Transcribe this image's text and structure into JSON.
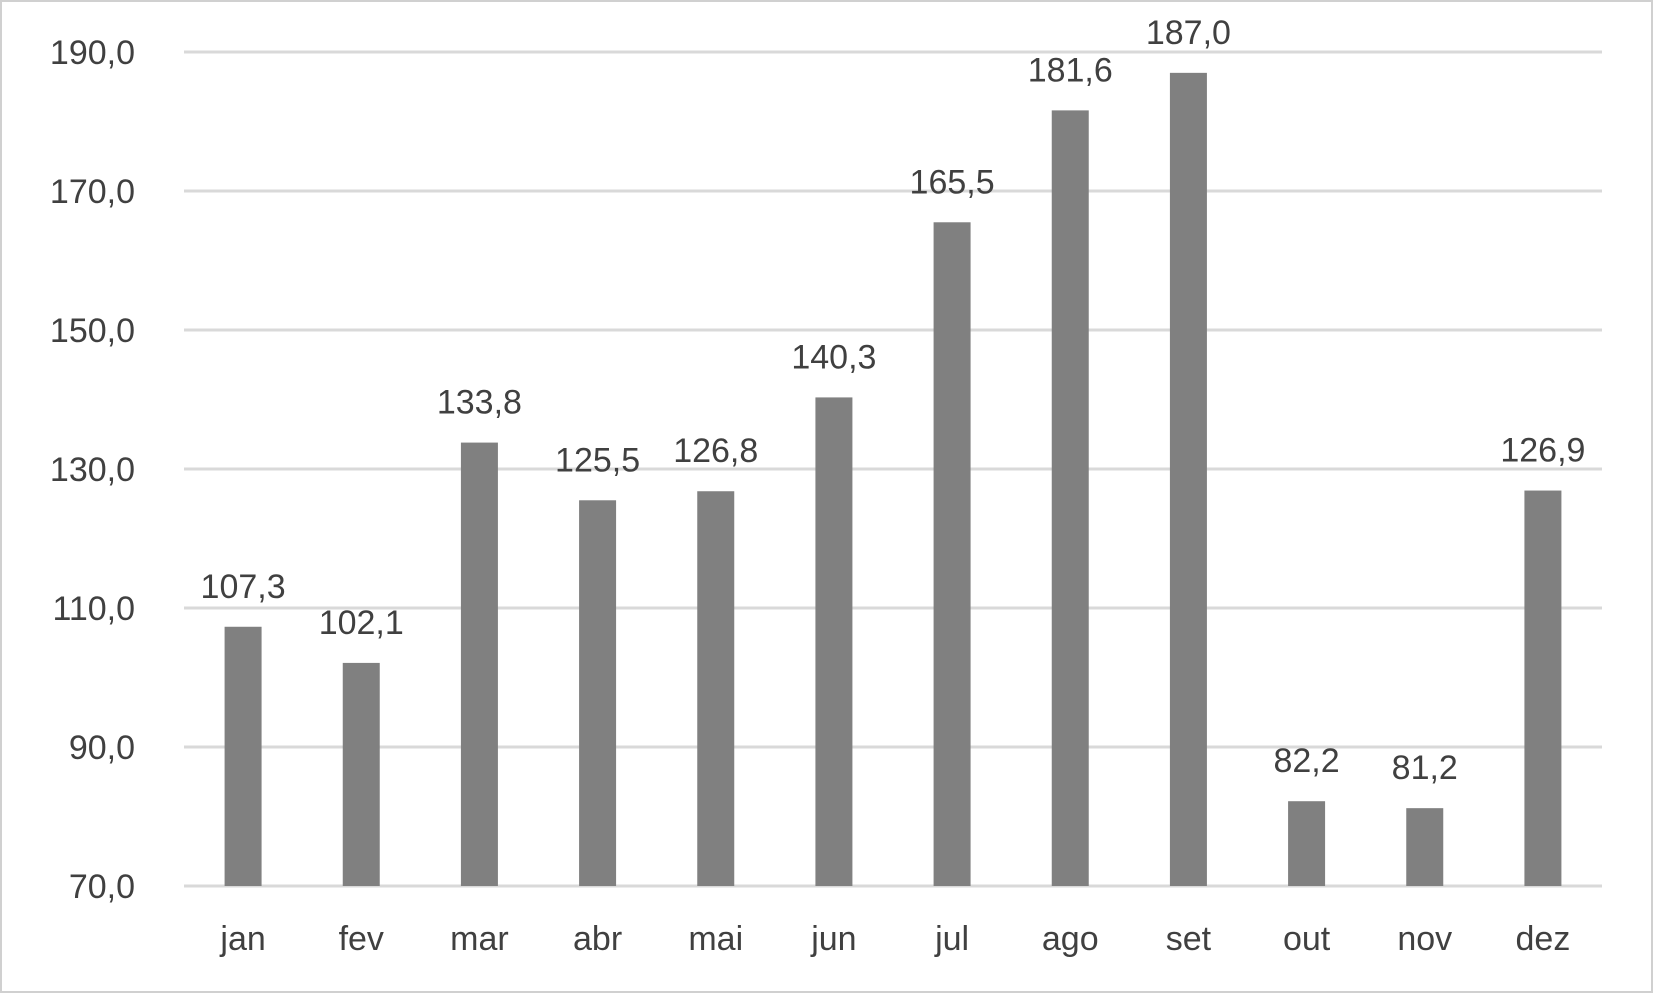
{
  "chart_data": {
    "type": "bar",
    "title": "",
    "xlabel": "",
    "ylabel": "",
    "categories": [
      "jan",
      "fev",
      "mar",
      "abr",
      "mai",
      "jun",
      "jul",
      "ago",
      "set",
      "out",
      "nov",
      "dez"
    ],
    "values": [
      107.3,
      102.1,
      133.8,
      125.5,
      126.8,
      140.3,
      165.5,
      181.6,
      187.0,
      82.2,
      81.2,
      126.9
    ],
    "value_labels": [
      "107,3",
      "102,1",
      "133,8",
      "125,5",
      "126,8",
      "140,3",
      "165,5",
      "181,6",
      "187,0",
      "82,2",
      "81,2",
      "126,9"
    ],
    "ylim": [
      70,
      190
    ],
    "yticks": [
      70,
      90,
      110,
      130,
      150,
      170,
      190
    ],
    "ytick_labels": [
      "70,0",
      "90,0",
      "110,0",
      "130,0",
      "150,0",
      "170,0",
      "190,0"
    ],
    "grid": true,
    "legend": "none",
    "colors": {
      "bar": "#808080",
      "grid": "#d9d9d9",
      "text": "#404040"
    }
  }
}
